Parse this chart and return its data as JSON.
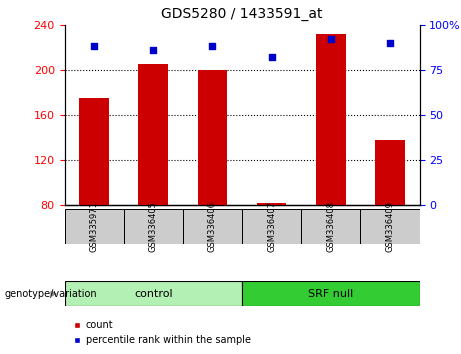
{
  "title": "GDS5280 / 1433591_at",
  "samples": [
    "GSM335971",
    "GSM336405",
    "GSM336406",
    "GSM336407",
    "GSM336408",
    "GSM336409"
  ],
  "counts": [
    175,
    205,
    200,
    82,
    232,
    138
  ],
  "percentile_ranks": [
    88,
    86,
    88,
    82,
    92,
    90
  ],
  "ylim_left": [
    80,
    240
  ],
  "ylim_right": [
    0,
    100
  ],
  "yticks_left": [
    80,
    120,
    160,
    200,
    240
  ],
  "yticks_right": [
    0,
    25,
    50,
    75,
    100
  ],
  "bar_color": "#cc0000",
  "dot_color": "#0000cc",
  "groups": [
    {
      "label": "control",
      "span": [
        0,
        3
      ],
      "color": "#b3f0b3"
    },
    {
      "label": "SRF null",
      "span": [
        3,
        6
      ],
      "color": "#33dd33"
    }
  ],
  "genotype_label": "genotype/variation",
  "legend_count": "count",
  "legend_percentile": "percentile rank within the sample",
  "bar_width": 0.5,
  "dot_size": 18,
  "title_fontsize": 10,
  "tick_fontsize": 8,
  "label_fontsize": 7,
  "group_fontsize": 8,
  "legend_fontsize": 7
}
